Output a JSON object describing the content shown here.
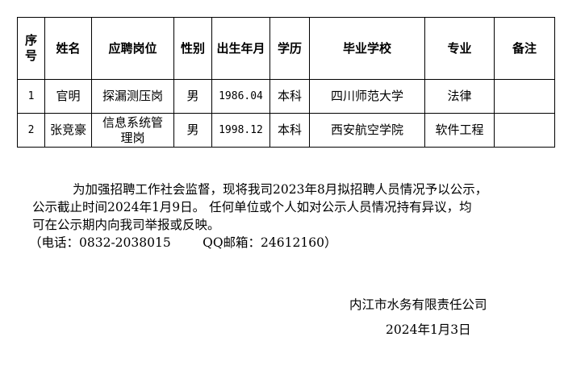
{
  "table": {
    "headers": [
      "序号",
      "姓名",
      "应聘岗位",
      "性别",
      "出生年月",
      "学历",
      "毕业学校",
      "专业",
      "备注"
    ],
    "rows": [
      [
        "1",
        "官明",
        "探漏测压岗",
        "男",
        "1986.04",
        "本科",
        "四川师范大学",
        "法律",
        ""
      ],
      [
        "2",
        "张竞豪",
        "信息系统管理岗",
        "男",
        "1998.12",
        "本科",
        "西安航空学院",
        "软件工程",
        ""
      ]
    ]
  },
  "notice": {
    "line1": "为加强招聘工作社会监督，现将我司2023年8月拟招聘人员情况予以公示，",
    "line2": "公示截止时间2024年1月9日。 任何单位或个人如对公示人员情况持有异议，均",
    "line3": "可在公示期内向我司举报或反映。",
    "line4": "（电话：0832-2038015        QQ邮箱：24612160）"
  },
  "signature": {
    "company": "内江市水务有限责任公司",
    "date": "2024年1月3日"
  }
}
